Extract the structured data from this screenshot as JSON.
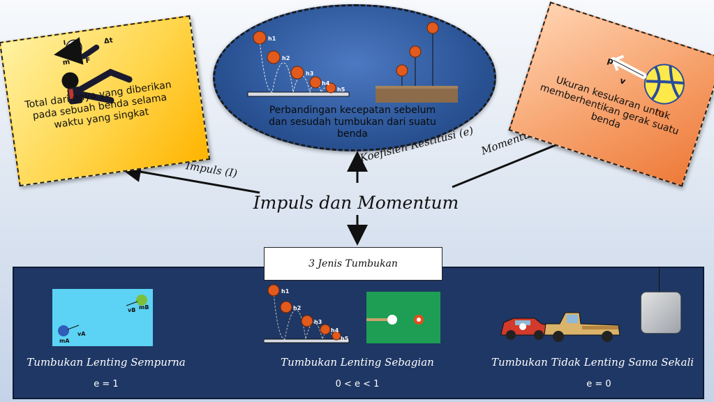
{
  "title": "Impuls dan Momentum",
  "arrows": {
    "impuls": "Impuls (I)",
    "restitusi": "Koefisien Restitusi (e)",
    "momentum": "Momentum (p)"
  },
  "cards": {
    "impuls": {
      "text": "Total dari gaya yang diberikan pada sebuah benda selama waktu yang singkat",
      "symbols": [
        "I",
        "m",
        "F",
        "Δt"
      ]
    },
    "restitusi": {
      "text": "Perbandingan kecepatan sebelum dan sesudah tumbukan dari suatu benda",
      "heights": [
        "h1",
        "h2",
        "h3",
        "h4",
        "h5"
      ]
    },
    "momentum": {
      "text": "Ukuran kesukaran untuk memberhentikan gerak suatu benda",
      "symbols": [
        "p",
        "v",
        "m"
      ]
    }
  },
  "collision": {
    "heading": "3 Jenis Tumbukan",
    "types": [
      {
        "label": "Tumbukan Lenting Sempurna",
        "equation": "e = 1"
      },
      {
        "label": "Tumbukan Lenting Sebagian",
        "equation": "0 < e < 1"
      },
      {
        "label": "Tumbukan Tidak Lenting Sama Sekali",
        "equation": "e = 0"
      }
    ],
    "elastic_labels": [
      "vB",
      "mB",
      "vA",
      "mA"
    ],
    "partial_heights": [
      "h1",
      "h2",
      "h3",
      "h4",
      "h5"
    ]
  }
}
